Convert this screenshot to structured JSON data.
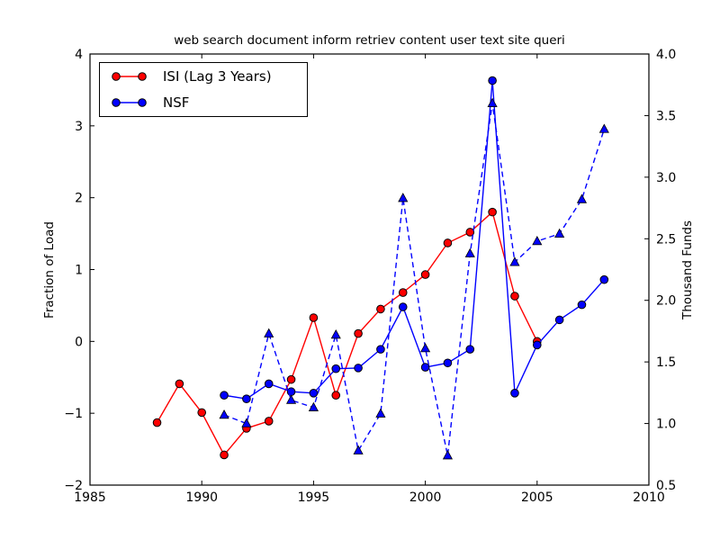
{
  "title": "web search document inform retriev content user text site queri",
  "axes": {
    "left_label": "Fraction of Load",
    "right_label": "Thousand Funds",
    "x_tick_labels": [
      "1985",
      "1990",
      "1995",
      "2000",
      "2005",
      "2010"
    ],
    "x_tick_values": [
      1985,
      1990,
      1995,
      2000,
      2005,
      2010
    ],
    "left_tick_labels": [
      "4",
      "3",
      "2",
      "1",
      "0",
      "−1",
      "−2"
    ],
    "left_tick_values": [
      4,
      3,
      2,
      1,
      0,
      -1,
      -2
    ],
    "right_tick_labels": [
      "4.0",
      "3.5",
      "3.0",
      "2.5",
      "2.0",
      "1.5",
      "1.0",
      "0.5"
    ],
    "right_tick_values": [
      4.0,
      3.5,
      3.0,
      2.5,
      2.0,
      1.5,
      1.0,
      0.5
    ],
    "axis_color": "#000000"
  },
  "chart_data": {
    "type": "line",
    "title": "web search document inform retriev content user text site queri",
    "xlabel": "",
    "ylabel_left": "Fraction of Load",
    "ylabel_right": "Thousand Funds",
    "x_range": [
      1985,
      2010
    ],
    "y_left_range": [
      -2,
      4
    ],
    "y_right_range": [
      0.5,
      4.0
    ],
    "grid": false,
    "legend_position": "upper left",
    "series": [
      {
        "name": "ISI (Lag 3 Years)",
        "axis": "left",
        "color": "#ff0000",
        "line_style": "solid",
        "marker": "circle",
        "in_legend": true,
        "x": [
          1988,
          1989,
          1990,
          1991,
          1992,
          1993,
          1994,
          1995,
          1996,
          1997,
          1998,
          1999,
          2000,
          2001,
          2002,
          2003,
          2004,
          2005
        ],
        "y": [
          -1.13,
          -0.59,
          -0.99,
          -1.58,
          -1.21,
          -1.11,
          -0.53,
          0.33,
          -0.75,
          0.11,
          0.45,
          0.68,
          0.93,
          1.37,
          1.52,
          1.8,
          0.63,
          0.0
        ]
      },
      {
        "name": "NSF",
        "axis": "left",
        "color": "#0000ff",
        "line_style": "solid",
        "marker": "circle",
        "in_legend": true,
        "x": [
          1991,
          1992,
          1993,
          1994,
          1995,
          1996,
          1997,
          1998,
          1999,
          2000,
          2001,
          2002,
          2003,
          2004,
          2005,
          2006,
          2007,
          2008
        ],
        "y": [
          -0.75,
          -0.8,
          -0.59,
          -0.7,
          -0.72,
          -0.38,
          -0.37,
          -0.11,
          0.48,
          -0.36,
          -0.3,
          -0.11,
          3.63,
          -0.72,
          -0.05,
          0.3,
          0.51,
          0.86
        ]
      },
      {
        "name": "",
        "axis": "right",
        "color": "#0000ff",
        "line_style": "dashed",
        "marker": "triangle",
        "in_legend": false,
        "x": [
          1991,
          1992,
          1993,
          1994,
          1995,
          1996,
          1997,
          1998,
          1999,
          2000,
          2001,
          2002,
          2003,
          2004,
          2005,
          2006,
          2007,
          2008
        ],
        "y": [
          1.07,
          1.0,
          1.73,
          1.19,
          1.13,
          1.72,
          0.78,
          1.08,
          2.83,
          1.61,
          0.74,
          2.38,
          3.6,
          2.31,
          2.48,
          2.54,
          2.82,
          3.39
        ]
      }
    ]
  }
}
